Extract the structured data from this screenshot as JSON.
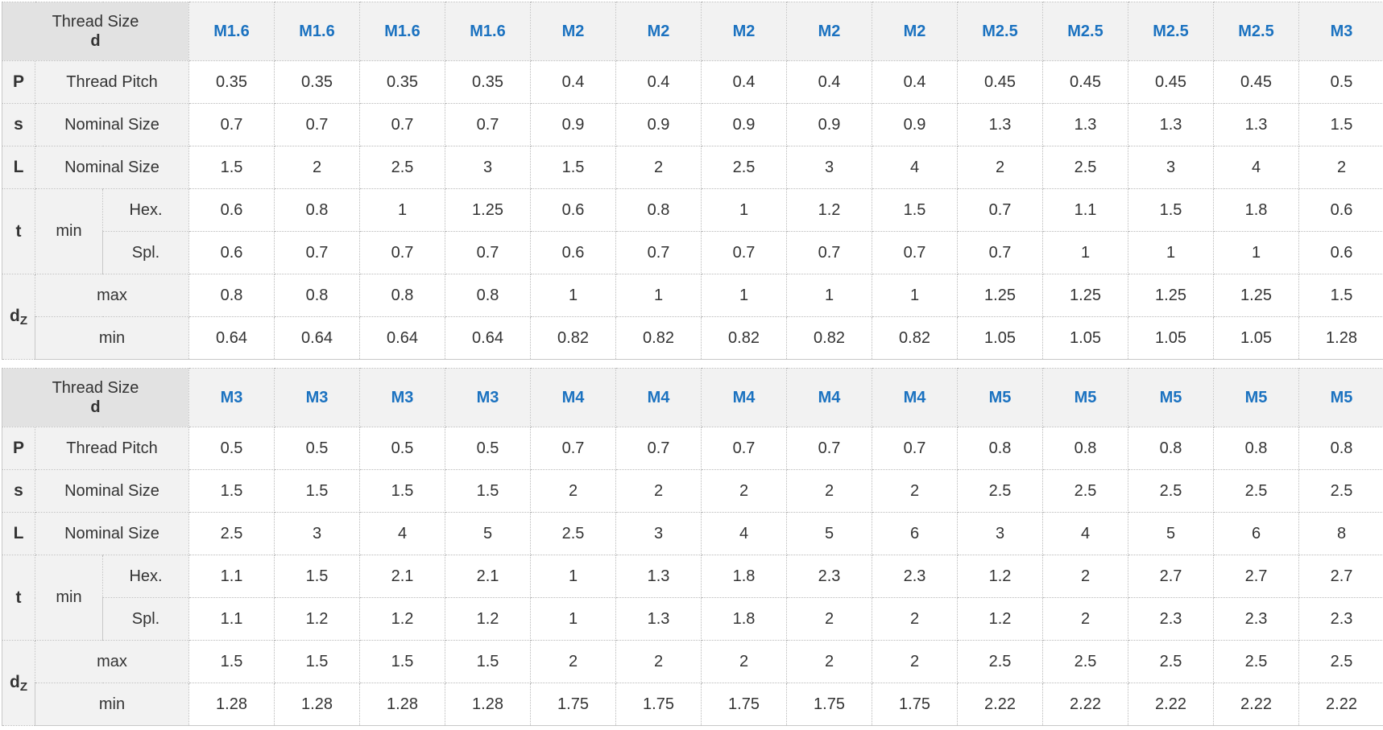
{
  "labels": {
    "thread_size": "Thread Size",
    "d": "d",
    "P": "P",
    "s": "s",
    "L": "L",
    "t": "t",
    "dz_main": "d",
    "dz_sub": "Z",
    "thread_pitch": "Thread Pitch",
    "nominal_size": "Nominal Size",
    "min": "min",
    "max": "max",
    "hex": "Hex.",
    "spl": "Spl."
  },
  "tables": [
    {
      "sizes": [
        "M1.6",
        "M1.6",
        "M1.6",
        "M1.6",
        "M2",
        "M2",
        "M2",
        "M2",
        "M2",
        "M2.5",
        "M2.5",
        "M2.5",
        "M2.5",
        "M3"
      ],
      "P": [
        "0.35",
        "0.35",
        "0.35",
        "0.35",
        "0.4",
        "0.4",
        "0.4",
        "0.4",
        "0.4",
        "0.45",
        "0.45",
        "0.45",
        "0.45",
        "0.5"
      ],
      "s": [
        "0.7",
        "0.7",
        "0.7",
        "0.7",
        "0.9",
        "0.9",
        "0.9",
        "0.9",
        "0.9",
        "1.3",
        "1.3",
        "1.3",
        "1.3",
        "1.5"
      ],
      "L": [
        "1.5",
        "2",
        "2.5",
        "3",
        "1.5",
        "2",
        "2.5",
        "3",
        "4",
        "2",
        "2.5",
        "3",
        "4",
        "2"
      ],
      "t_hex": [
        "0.6",
        "0.8",
        "1",
        "1.25",
        "0.6",
        "0.8",
        "1",
        "1.2",
        "1.5",
        "0.7",
        "1.1",
        "1.5",
        "1.8",
        "0.6"
      ],
      "t_spl": [
        "0.6",
        "0.7",
        "0.7",
        "0.7",
        "0.6",
        "0.7",
        "0.7",
        "0.7",
        "0.7",
        "0.7",
        "1",
        "1",
        "1",
        "0.6"
      ],
      "dz_max": [
        "0.8",
        "0.8",
        "0.8",
        "0.8",
        "1",
        "1",
        "1",
        "1",
        "1",
        "1.25",
        "1.25",
        "1.25",
        "1.25",
        "1.5"
      ],
      "dz_min": [
        "0.64",
        "0.64",
        "0.64",
        "0.64",
        "0.82",
        "0.82",
        "0.82",
        "0.82",
        "0.82",
        "1.05",
        "1.05",
        "1.05",
        "1.05",
        "1.28"
      ]
    },
    {
      "sizes": [
        "M3",
        "M3",
        "M3",
        "M3",
        "M4",
        "M4",
        "M4",
        "M4",
        "M4",
        "M5",
        "M5",
        "M5",
        "M5",
        "M5"
      ],
      "P": [
        "0.5",
        "0.5",
        "0.5",
        "0.5",
        "0.7",
        "0.7",
        "0.7",
        "0.7",
        "0.7",
        "0.8",
        "0.8",
        "0.8",
        "0.8",
        "0.8"
      ],
      "s": [
        "1.5",
        "1.5",
        "1.5",
        "1.5",
        "2",
        "2",
        "2",
        "2",
        "2",
        "2.5",
        "2.5",
        "2.5",
        "2.5",
        "2.5"
      ],
      "L": [
        "2.5",
        "3",
        "4",
        "5",
        "2.5",
        "3",
        "4",
        "5",
        "6",
        "3",
        "4",
        "5",
        "6",
        "8"
      ],
      "t_hex": [
        "1.1",
        "1.5",
        "2.1",
        "2.1",
        "1",
        "1.3",
        "1.8",
        "2.3",
        "2.3",
        "1.2",
        "2",
        "2.7",
        "2.7",
        "2.7"
      ],
      "t_spl": [
        "1.1",
        "1.2",
        "1.2",
        "1.2",
        "1",
        "1.3",
        "1.8",
        "2",
        "2",
        "1.2",
        "2",
        "2.3",
        "2.3",
        "2.3"
      ],
      "dz_max": [
        "1.5",
        "1.5",
        "1.5",
        "1.5",
        "2",
        "2",
        "2",
        "2",
        "2",
        "2.5",
        "2.5",
        "2.5",
        "2.5",
        "2.5"
      ],
      "dz_min": [
        "1.28",
        "1.28",
        "1.28",
        "1.28",
        "1.75",
        "1.75",
        "1.75",
        "1.75",
        "1.75",
        "2.22",
        "2.22",
        "2.22",
        "2.22",
        "2.22"
      ]
    }
  ]
}
